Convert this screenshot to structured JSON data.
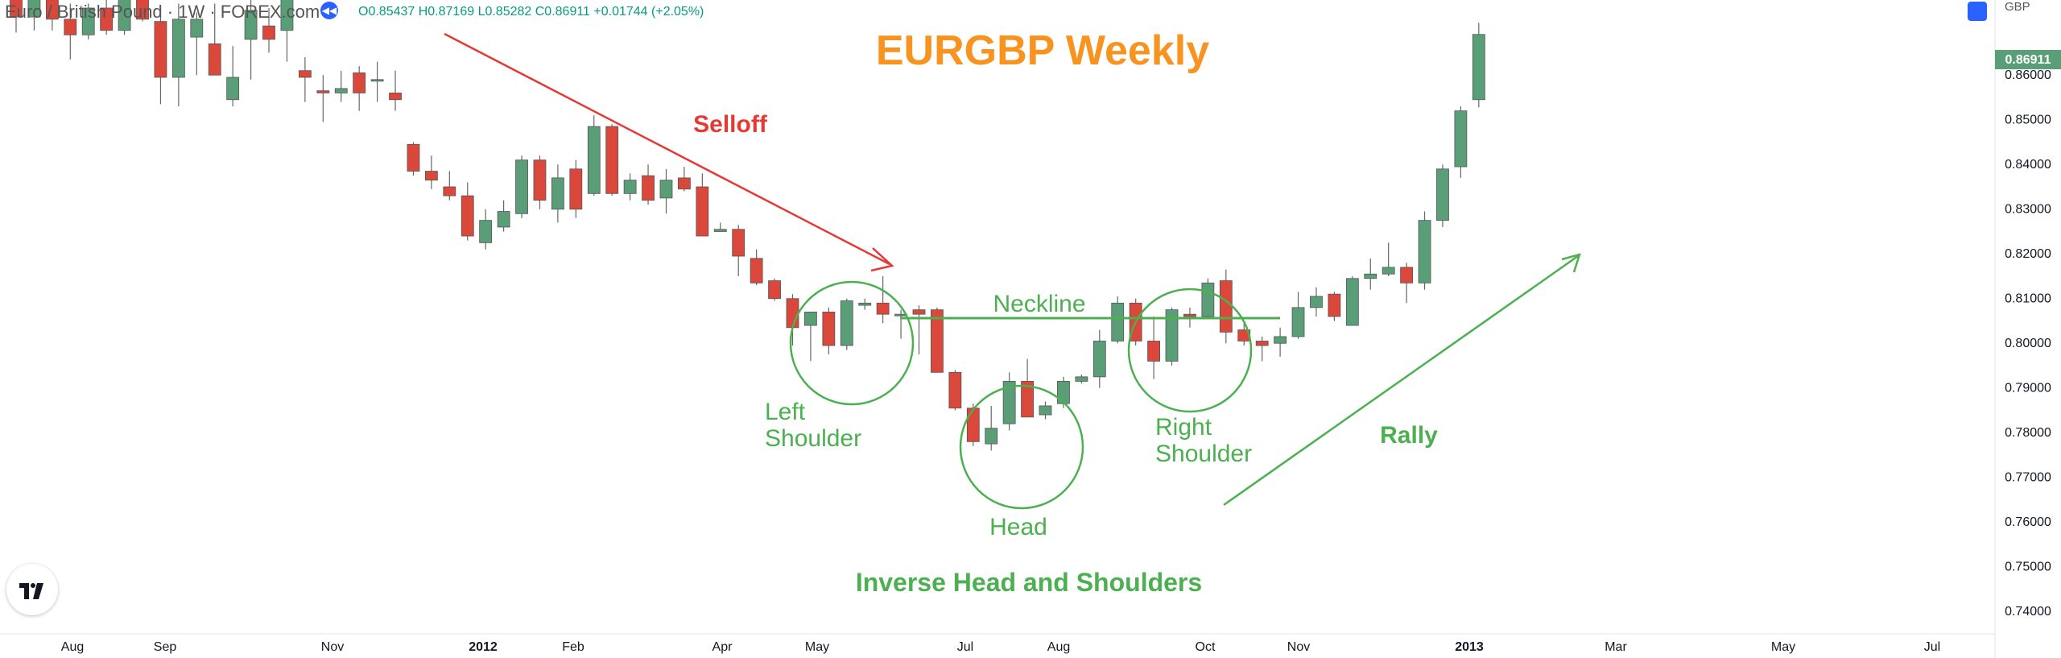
{
  "header": {
    "symbol_label": "Euro / British Pound · 1W · FOREX.com",
    "ohlc_label": "O0.85437 H0.87169 L0.85282 C0.86911 +0.01744 (+2.05%)",
    "currency": "GBP"
  },
  "colors": {
    "up": "#5a9e78",
    "down": "#d9483b",
    "annotation_green": "#4caf50",
    "title_orange": "#f7931e",
    "selloff_red": "#e53935"
  },
  "chart_data": {
    "type": "candlestick",
    "title": "EURGBP Weekly",
    "ylim": [
      0.735,
      0.8768
    ],
    "y_ticks": [
      "0.86000",
      "0.85000",
      "0.84000",
      "0.83000",
      "0.82000",
      "0.81000",
      "0.80000",
      "0.79000",
      "0.78000",
      "0.77000",
      "0.76000",
      "0.75000",
      "0.74000"
    ],
    "x_ticks": [
      "Aug",
      "Sep",
      "Nov",
      "2012",
      "Feb",
      "Apr",
      "May",
      "Jul",
      "Aug",
      "Oct",
      "Nov",
      "2013",
      "Mar",
      "May",
      "Jul"
    ],
    "last_price": "0.86911",
    "candles": [
      {
        "o": 0.8775,
        "h": 0.88,
        "l": 0.8695,
        "c": 0.873
      },
      {
        "o": 0.873,
        "h": 0.879,
        "l": 0.87,
        "c": 0.877
      },
      {
        "o": 0.877,
        "h": 0.88,
        "l": 0.87,
        "c": 0.8725
      },
      {
        "o": 0.8725,
        "h": 0.876,
        "l": 0.8635,
        "c": 0.869
      },
      {
        "o": 0.869,
        "h": 0.876,
        "l": 0.868,
        "c": 0.875
      },
      {
        "o": 0.875,
        "h": 0.877,
        "l": 0.869,
        "c": 0.87
      },
      {
        "o": 0.87,
        "h": 0.879,
        "l": 0.869,
        "c": 0.8775
      },
      {
        "o": 0.8775,
        "h": 0.88,
        "l": 0.872,
        "c": 0.8725
      },
      {
        "o": 0.872,
        "h": 0.8755,
        "l": 0.8535,
        "c": 0.8595
      },
      {
        "o": 0.8595,
        "h": 0.876,
        "l": 0.853,
        "c": 0.8725
      },
      {
        "o": 0.8685,
        "h": 0.874,
        "l": 0.86,
        "c": 0.8725
      },
      {
        "o": 0.867,
        "h": 0.876,
        "l": 0.86,
        "c": 0.86
      },
      {
        "o": 0.8545,
        "h": 0.8665,
        "l": 0.853,
        "c": 0.8595
      },
      {
        "o": 0.868,
        "h": 0.88,
        "l": 0.859,
        "c": 0.8745
      },
      {
        "o": 0.871,
        "h": 0.875,
        "l": 0.865,
        "c": 0.868
      },
      {
        "o": 0.87,
        "h": 0.88,
        "l": 0.863,
        "c": 0.878
      },
      {
        "o": 0.861,
        "h": 0.864,
        "l": 0.854,
        "c": 0.8595
      },
      {
        "o": 0.8565,
        "h": 0.86,
        "l": 0.8495,
        "c": 0.856
      },
      {
        "o": 0.856,
        "h": 0.861,
        "l": 0.854,
        "c": 0.857
      },
      {
        "o": 0.8605,
        "h": 0.862,
        "l": 0.852,
        "c": 0.856
      },
      {
        "o": 0.859,
        "h": 0.863,
        "l": 0.854,
        "c": 0.859
      },
      {
        "o": 0.856,
        "h": 0.861,
        "l": 0.852,
        "c": 0.8545
      },
      {
        "o": 0.8445,
        "h": 0.845,
        "l": 0.8375,
        "c": 0.8385
      },
      {
        "o": 0.8385,
        "h": 0.842,
        "l": 0.8345,
        "c": 0.8365
      },
      {
        "o": 0.835,
        "h": 0.8385,
        "l": 0.832,
        "c": 0.833
      },
      {
        "o": 0.833,
        "h": 0.836,
        "l": 0.823,
        "c": 0.824
      },
      {
        "o": 0.8225,
        "h": 0.83,
        "l": 0.821,
        "c": 0.8275
      },
      {
        "o": 0.826,
        "h": 0.832,
        "l": 0.825,
        "c": 0.8295
      },
      {
        "o": 0.829,
        "h": 0.842,
        "l": 0.828,
        "c": 0.841
      },
      {
        "o": 0.841,
        "h": 0.842,
        "l": 0.83,
        "c": 0.832
      },
      {
        "o": 0.83,
        "h": 0.84,
        "l": 0.827,
        "c": 0.837
      },
      {
        "o": 0.839,
        "h": 0.841,
        "l": 0.828,
        "c": 0.83
      },
      {
        "o": 0.8335,
        "h": 0.851,
        "l": 0.833,
        "c": 0.8485
      },
      {
        "o": 0.8485,
        "h": 0.849,
        "l": 0.833,
        "c": 0.8335
      },
      {
        "o": 0.8335,
        "h": 0.838,
        "l": 0.832,
        "c": 0.8365
      },
      {
        "o": 0.8375,
        "h": 0.84,
        "l": 0.831,
        "c": 0.832
      },
      {
        "o": 0.8325,
        "h": 0.839,
        "l": 0.829,
        "c": 0.8365
      },
      {
        "o": 0.837,
        "h": 0.8395,
        "l": 0.834,
        "c": 0.8345
      },
      {
        "o": 0.835,
        "h": 0.838,
        "l": 0.824,
        "c": 0.824
      },
      {
        "o": 0.825,
        "h": 0.827,
        "l": 0.825,
        "c": 0.8255
      },
      {
        "o": 0.8255,
        "h": 0.8265,
        "l": 0.815,
        "c": 0.8195
      },
      {
        "o": 0.819,
        "h": 0.821,
        "l": 0.813,
        "c": 0.8135
      },
      {
        "o": 0.814,
        "h": 0.8145,
        "l": 0.8095,
        "c": 0.81
      },
      {
        "o": 0.81,
        "h": 0.811,
        "l": 0.7995,
        "c": 0.8035
      },
      {
        "o": 0.804,
        "h": 0.807,
        "l": 0.796,
        "c": 0.807
      },
      {
        "o": 0.807,
        "h": 0.808,
        "l": 0.7975,
        "c": 0.7995
      },
      {
        "o": 0.7995,
        "h": 0.81,
        "l": 0.7985,
        "c": 0.8095
      },
      {
        "o": 0.8085,
        "h": 0.81,
        "l": 0.8075,
        "c": 0.809
      },
      {
        "o": 0.809,
        "h": 0.815,
        "l": 0.8045,
        "c": 0.8065
      },
      {
        "o": 0.8065,
        "h": 0.8075,
        "l": 0.801,
        "c": 0.8065
      },
      {
        "o": 0.8075,
        "h": 0.8085,
        "l": 0.7975,
        "c": 0.8065
      },
      {
        "o": 0.8075,
        "h": 0.808,
        "l": 0.7935,
        "c": 0.7935
      },
      {
        "o": 0.7935,
        "h": 0.794,
        "l": 0.785,
        "c": 0.7855
      },
      {
        "o": 0.7855,
        "h": 0.7865,
        "l": 0.777,
        "c": 0.778
      },
      {
        "o": 0.7775,
        "h": 0.786,
        "l": 0.776,
        "c": 0.781
      },
      {
        "o": 0.782,
        "h": 0.7935,
        "l": 0.7805,
        "c": 0.7915
      },
      {
        "o": 0.7915,
        "h": 0.7965,
        "l": 0.7835,
        "c": 0.7835
      },
      {
        "o": 0.784,
        "h": 0.787,
        "l": 0.783,
        "c": 0.786
      },
      {
        "o": 0.7865,
        "h": 0.7925,
        "l": 0.7855,
        "c": 0.7915
      },
      {
        "o": 0.7915,
        "h": 0.793,
        "l": 0.791,
        "c": 0.7925
      },
      {
        "o": 0.7925,
        "h": 0.803,
        "l": 0.79,
        "c": 0.8005
      },
      {
        "o": 0.8005,
        "h": 0.8105,
        "l": 0.8,
        "c": 0.809
      },
      {
        "o": 0.809,
        "h": 0.81,
        "l": 0.7995,
        "c": 0.8005
      },
      {
        "o": 0.8005,
        "h": 0.806,
        "l": 0.792,
        "c": 0.796
      },
      {
        "o": 0.796,
        "h": 0.808,
        "l": 0.795,
        "c": 0.8075
      },
      {
        "o": 0.8065,
        "h": 0.808,
        "l": 0.8035,
        "c": 0.806
      },
      {
        "o": 0.806,
        "h": 0.8145,
        "l": 0.8055,
        "c": 0.8135
      },
      {
        "o": 0.814,
        "h": 0.8165,
        "l": 0.8,
        "c": 0.8025
      },
      {
        "o": 0.803,
        "h": 0.8045,
        "l": 0.7995,
        "c": 0.8005
      },
      {
        "o": 0.8005,
        "h": 0.8015,
        "l": 0.796,
        "c": 0.7995
      },
      {
        "o": 0.8,
        "h": 0.8035,
        "l": 0.797,
        "c": 0.8015
      },
      {
        "o": 0.8015,
        "h": 0.8115,
        "l": 0.801,
        "c": 0.808
      },
      {
        "o": 0.808,
        "h": 0.8125,
        "l": 0.806,
        "c": 0.8105
      },
      {
        "o": 0.811,
        "h": 0.8115,
        "l": 0.805,
        "c": 0.806
      },
      {
        "o": 0.804,
        "h": 0.815,
        "l": 0.804,
        "c": 0.8145
      },
      {
        "o": 0.8145,
        "h": 0.819,
        "l": 0.812,
        "c": 0.8155
      },
      {
        "o": 0.8155,
        "h": 0.8225,
        "l": 0.815,
        "c": 0.817
      },
      {
        "o": 0.817,
        "h": 0.818,
        "l": 0.809,
        "c": 0.8135
      },
      {
        "o": 0.8135,
        "h": 0.8295,
        "l": 0.812,
        "c": 0.8275
      },
      {
        "o": 0.8275,
        "h": 0.84,
        "l": 0.826,
        "c": 0.839
      },
      {
        "o": 0.8395,
        "h": 0.853,
        "l": 0.837,
        "c": 0.852
      },
      {
        "o": 0.8545,
        "h": 0.8717,
        "l": 0.8528,
        "c": 0.8691
      }
    ]
  },
  "annotations": {
    "title": "EURGBP Weekly",
    "selloff": "Selloff",
    "neckline": "Neckline",
    "left_shoulder_1": "Left",
    "left_shoulder_2": "Shoulder",
    "head": "Head",
    "right_shoulder_1": "Right",
    "right_shoulder_2": "Shoulder",
    "rally": "Rally",
    "pattern": "Inverse Head and Shoulders"
  }
}
